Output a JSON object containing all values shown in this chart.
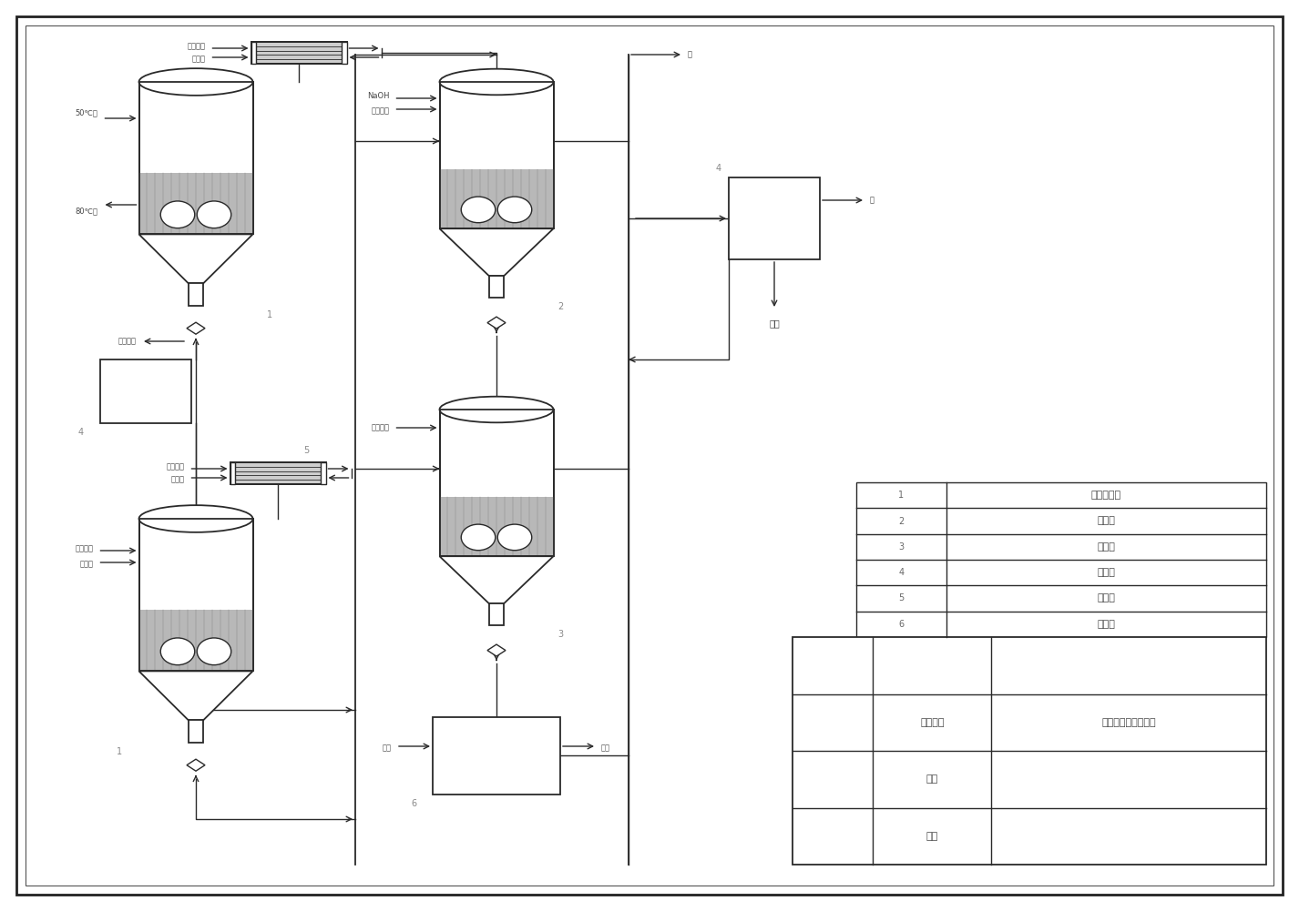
{
  "bg_color": "#ffffff",
  "line_color": "#2a2a2a",
  "legend_items": [
    [
      "1",
      "混合反应釜"
    ],
    [
      "2",
      "萄取罐"
    ],
    [
      "3",
      "浓缩釜"
    ],
    [
      "4",
      "蕉发槽"
    ],
    [
      "5",
      "冷凝器"
    ],
    [
      "6",
      "结晶槽"
    ]
  ],
  "title_block": {
    "design_project": "咀咀洛尔的工艺设计",
    "student_id_label": "学号",
    "name_label": "姓名",
    "project_label": "设计项目"
  },
  "labels": {
    "r1_top_feed1": "二氧六环",
    "r1_top_feed2": "异丙胺",
    "r1_left_in": "50℃水",
    "r1_left_out": "80℃水",
    "r1_dioxane": "二氧六环",
    "r2_feeds": "NaOH",
    "r2_feed2": "二氯甲烷",
    "r3_feed": "二氯甲烷",
    "cond_feeds1": "乙酸乙酯",
    "cond_feeds2": "酒石酸",
    "water_out": "水",
    "product": "产品",
    "yu_left": "余液",
    "yu_right": "余液",
    "label4": "4",
    "label5": "5"
  }
}
